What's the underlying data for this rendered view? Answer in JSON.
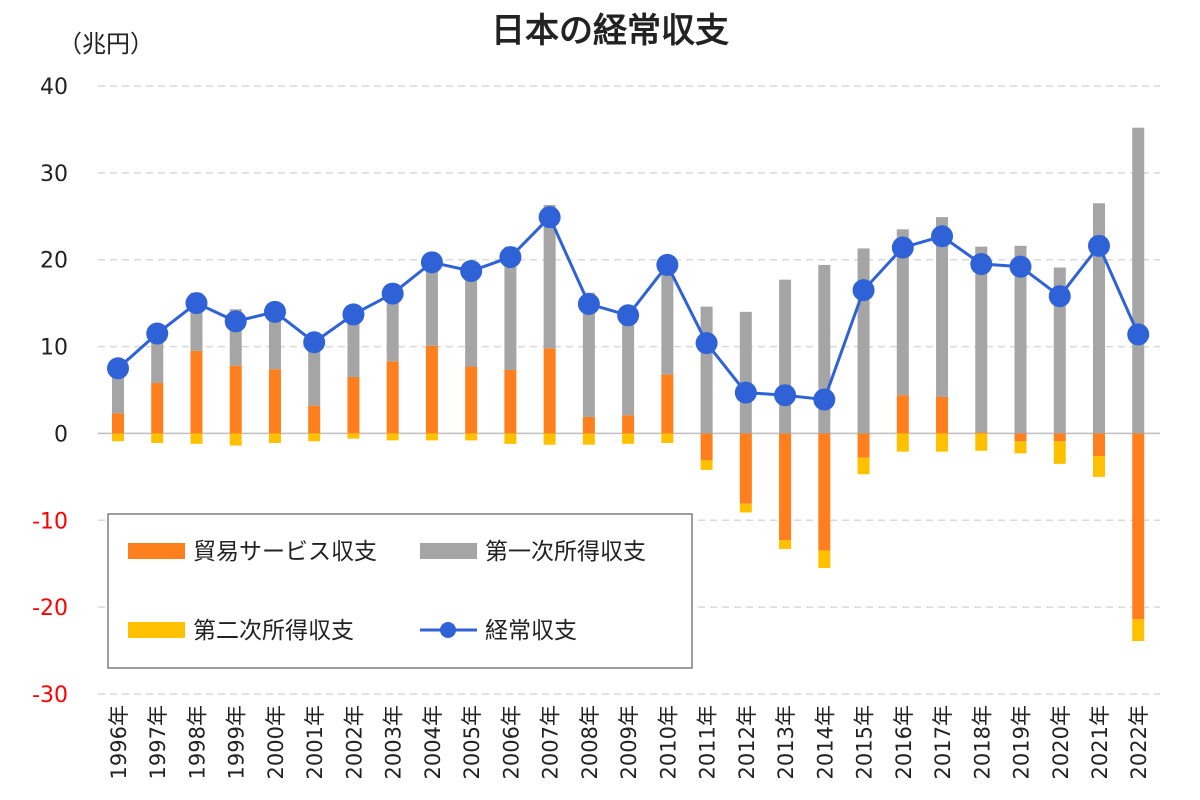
{
  "chart_data": {
    "type": "bar",
    "title": "日本の経常収支",
    "unit_label": "（兆円）",
    "ylim": [
      -30,
      40
    ],
    "yticks": [
      40,
      30,
      20,
      10,
      0,
      -10,
      -20,
      -30
    ],
    "negative_tick_color": "#ff0000",
    "grid": true,
    "legend_position": "center-left",
    "categories": [
      "1996年",
      "1997年",
      "1998年",
      "1999年",
      "2000年",
      "2001年",
      "2002年",
      "2003年",
      "2004年",
      "2005年",
      "2006年",
      "2007年",
      "2008年",
      "2009年",
      "2010年",
      "2011年",
      "2012年",
      "2013年",
      "2014年",
      "2015年",
      "2016年",
      "2017年",
      "2018年",
      "2019年",
      "2020年",
      "2021年",
      "2022年"
    ],
    "series": [
      {
        "name": "貿易サービス収支",
        "type": "bar",
        "color": "#ff7f1e",
        "values": [
          2.3,
          5.8,
          9.5,
          7.8,
          7.4,
          3.2,
          6.5,
          8.3,
          10.1,
          7.7,
          7.3,
          9.8,
          1.9,
          2.1,
          6.8,
          -3.1,
          -8.1,
          -12.3,
          -13.5,
          -2.8,
          4.4,
          4.2,
          0.1,
          -0.9,
          -0.9,
          -2.6,
          -21.4
        ]
      },
      {
        "name": "第一次所得収支",
        "type": "bar",
        "color": "#a5a5a5",
        "values": [
          6.1,
          6.6,
          6.7,
          6.5,
          7.6,
          8.4,
          8.2,
          8.1,
          10.3,
          11.4,
          14.2,
          16.5,
          14.3,
          12.6,
          13.6,
          14.6,
          14.0,
          17.7,
          19.4,
          21.3,
          19.1,
          20.7,
          21.4,
          21.6,
          19.1,
          26.5,
          35.2
        ]
      },
      {
        "name": "第二次所得収支",
        "type": "bar",
        "color": "#ffc000",
        "values": [
          -0.9,
          -1.1,
          -1.2,
          -1.4,
          -1.1,
          -0.9,
          -0.6,
          -0.8,
          -0.8,
          -0.8,
          -1.2,
          -1.3,
          -1.3,
          -1.2,
          -1.1,
          -1.1,
          -1.0,
          -1.0,
          -2.0,
          -1.9,
          -2.1,
          -2.1,
          -2.0,
          -1.4,
          -2.6,
          -2.4,
          -2.5
        ]
      },
      {
        "name": "経常収支",
        "type": "line",
        "color": "#2e62d6",
        "values": [
          7.5,
          11.5,
          15.0,
          12.9,
          14.0,
          10.5,
          13.7,
          16.1,
          19.7,
          18.7,
          20.3,
          24.9,
          14.9,
          13.6,
          19.4,
          10.4,
          4.7,
          4.4,
          3.9,
          16.5,
          21.4,
          22.7,
          19.5,
          19.2,
          15.8,
          21.6,
          11.4
        ]
      }
    ]
  }
}
